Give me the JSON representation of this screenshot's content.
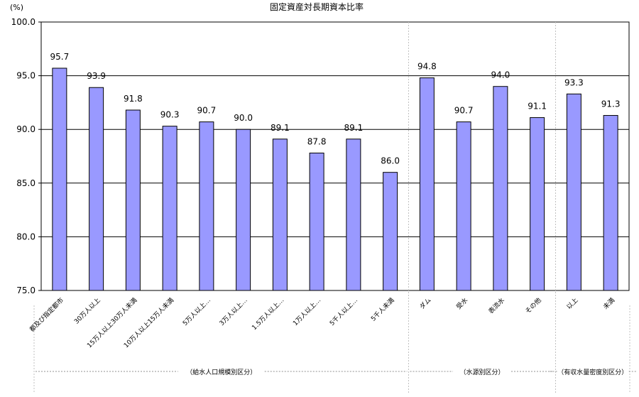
{
  "chart_data": {
    "type": "bar",
    "title": "固定資産対長期資本比率",
    "ylabel": "(%)",
    "xlabel": "",
    "ylim": [
      75.0,
      100.0
    ],
    "yticks": [
      "100.0",
      "95.0",
      "90.0",
      "85.0",
      "80.0",
      "75.0"
    ],
    "grid": true,
    "legend": "none",
    "bar_color": "#9999ff",
    "categories": [
      "都及び指定都市",
      "30万人以上",
      "15万人以上30万人未満",
      "10万人以上15万人未満",
      "5万人以上…",
      "3万人以上…",
      "1.5万人以上…",
      "1万人以上…",
      "5千人以上…",
      "5千人未満",
      "ダム",
      "受水",
      "表流水",
      "その他",
      "以上",
      "未満"
    ],
    "values": [
      95.7,
      93.9,
      91.8,
      90.3,
      90.7,
      90.0,
      89.1,
      87.8,
      89.1,
      86.0,
      94.8,
      90.7,
      94.0,
      91.1,
      93.3,
      91.3
    ],
    "value_labels": [
      "95.7",
      "93.9",
      "91.8",
      "90.3",
      "90.7",
      "90.0",
      "89.1",
      "87.8",
      "89.1",
      "86.0",
      "94.8",
      "90.7",
      "94.0",
      "91.1",
      "93.3",
      "91.3"
    ],
    "groups": [
      {
        "label": "（給水人口規模別区分）",
        "count": 10
      },
      {
        "label": "（水源別区分）",
        "count": 4
      },
      {
        "label": "（有収水量密度別区分）",
        "count": 2
      }
    ]
  }
}
